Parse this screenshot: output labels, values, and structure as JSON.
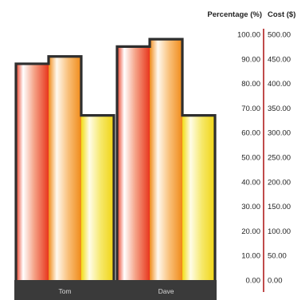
{
  "chart_data": {
    "type": "bar",
    "categories": [
      "Tom",
      "Dave"
    ],
    "series": [
      {
        "color": "#e8361c",
        "values": [
          88,
          95
        ]
      },
      {
        "color": "#f28a18",
        "values": [
          91,
          98
        ]
      },
      {
        "color": "#f0d412",
        "values": [
          67,
          67
        ]
      }
    ],
    "axes": {
      "percentage": {
        "title": "Percentage (%)",
        "ylim": [
          0,
          100
        ],
        "ticks": [
          "100.00",
          "90.00",
          "80.00",
          "70.00",
          "60.00",
          "50.00",
          "40.00",
          "30.00",
          "20.00",
          "10.00",
          "0.00"
        ]
      },
      "cost": {
        "title": "Cost ($)",
        "ylim": [
          0,
          500
        ],
        "ticks": [
          "500.00",
          "450.00",
          "400.00",
          "350.00",
          "300.00",
          "250.00",
          "200.00",
          "150.00",
          "100.00",
          "50.00",
          "0.00"
        ]
      }
    },
    "axis_line_color": "#b01e1e",
    "grid": false
  }
}
